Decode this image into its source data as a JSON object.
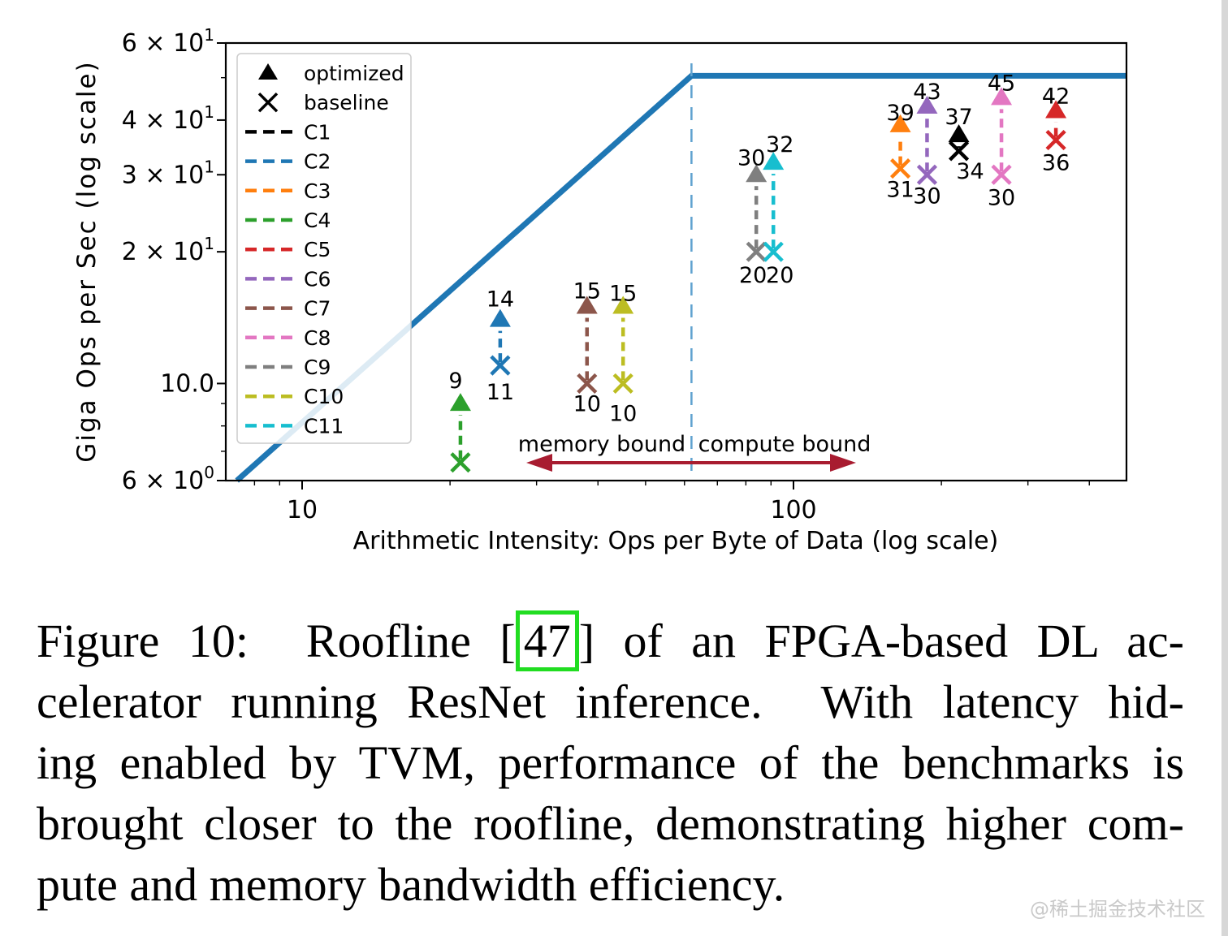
{
  "figure": {
    "caption": {
      "line1_pre": "Figure 10:  Roofline [",
      "citation": "47",
      "citation_box_color": "#21dd21",
      "line1_post": "] of an FPGA-based DL ac-",
      "line2": "celerator running ResNet inference.  With latency hid-",
      "line3": "ing enabled by TVM, performance of the benchmarks is",
      "line4": "brought closer to the roofline, demonstrating higher com-",
      "line5": "pute and memory bandwidth efficiency."
    },
    "watermark": "@稀土掘金技术社区"
  },
  "chart_data": {
    "type": "scatter",
    "title": "",
    "xlabel": "Arithmetic Intensity: Ops per Byte of Data (log scale)",
    "ylabel": "Giga Ops per Sec (log scale)",
    "x_scale": "log",
    "y_scale": "log",
    "xlim": [
      7.05,
      480
    ],
    "ylim": [
      6,
      60
    ],
    "grid": false,
    "legend_position": "upper left",
    "x_axis": {
      "major": [
        {
          "v": 10,
          "label": "10"
        },
        {
          "v": 100,
          "label": "100"
        }
      ],
      "minor_values": [
        8,
        9,
        20,
        30,
        40,
        50,
        60,
        70,
        80,
        90,
        200,
        300,
        400
      ]
    },
    "y_axis": {
      "major": [
        {
          "v": 60,
          "m": "6 × 10",
          "e": "1"
        },
        {
          "v": 40,
          "m": "4 × 10",
          "e": "1"
        },
        {
          "v": 30,
          "m": "3 × 10",
          "e": "1"
        },
        {
          "v": 20,
          "m": "2 × 10",
          "e": "1"
        },
        {
          "v": 10,
          "m": "10.0",
          "e": ""
        },
        {
          "v": 6,
          "m": "6 × 10",
          "e": "0"
        }
      ],
      "minor_values": [
        7,
        8,
        9,
        50
      ]
    },
    "roofline": {
      "peak_gops": 50.5,
      "ridge_x": 62,
      "color": "#1f77b4",
      "divider_color": "#5fa2d0"
    },
    "annotations": {
      "memory_bound": "memory bound",
      "compute_bound": "compute bound",
      "arrow_color": "#a81c30"
    },
    "legend": {
      "markers": [
        {
          "marker": "triangle",
          "label": "optimized"
        },
        {
          "marker": "x",
          "label": "baseline"
        }
      ]
    },
    "series": [
      {
        "name": "C1",
        "color": "#000000",
        "x": 217,
        "baseline": 34,
        "optimized": 37,
        "opt_label": "37",
        "base_label": "34",
        "ol_dy": 3,
        "bl_dx": 14,
        "bl_dy": -8
      },
      {
        "name": "C2",
        "color": "#1f77b4",
        "x": 25.3,
        "baseline": 11,
        "optimized": 14,
        "opt_label": "14",
        "base_label": "11"
      },
      {
        "name": "C3",
        "color": "#ff7f0e",
        "x": 165,
        "baseline": 31,
        "optimized": 39,
        "opt_label": "39",
        "base_label": "31",
        "ol_dy": 10,
        "bl_dy": -7
      },
      {
        "name": "C4",
        "color": "#2ca02c",
        "x": 21,
        "baseline": 6.6,
        "optimized": 9,
        "opt_label": "9",
        "base_label": "",
        "ol_dx": -6,
        "ol_dy": -3
      },
      {
        "name": "C5",
        "color": "#d62728",
        "x": 342,
        "baseline": 36,
        "optimized": 42,
        "opt_label": "42",
        "base_label": "36",
        "ol_dy": 7,
        "bl_dy": -5
      },
      {
        "name": "C6",
        "color": "#9467bd",
        "x": 187,
        "baseline": 30,
        "optimized": 43,
        "opt_label": "43",
        "base_label": "30",
        "ol_dy": 7,
        "bl_dy": -7
      },
      {
        "name": "C7",
        "color": "#8c564b",
        "x": 38,
        "baseline": 10,
        "optimized": 15,
        "opt_label": "15",
        "base_label": "10",
        "ol_dy": 6,
        "bl_dy": -8
      },
      {
        "name": "C8",
        "color": "#e377c2",
        "x": 265,
        "baseline": 30,
        "optimized": 45,
        "opt_label": "45",
        "base_label": "30",
        "ol_dy": 7,
        "bl_dy": -5
      },
      {
        "name": "C9",
        "color": "#7f7f7f",
        "x": 84,
        "baseline": 20,
        "optimized": 30,
        "opt_label": "30",
        "base_label": "20",
        "ol_dx": -6,
        "ol_dy": 4,
        "bl_dx": -4,
        "bl_dy": -4
      },
      {
        "name": "C10",
        "color": "#bcbd22",
        "x": 45,
        "baseline": 10,
        "optimized": 15,
        "opt_label": "15",
        "base_label": "10",
        "ol_dy": 9,
        "bl_dy": 4
      },
      {
        "name": "C11",
        "color": "#17becf",
        "x": 91,
        "baseline": 20,
        "optimized": 32,
        "opt_label": "32",
        "base_label": "20",
        "ol_dx": 8,
        "ol_dy": 3,
        "bl_dx": 8,
        "bl_dy": -4
      }
    ]
  }
}
